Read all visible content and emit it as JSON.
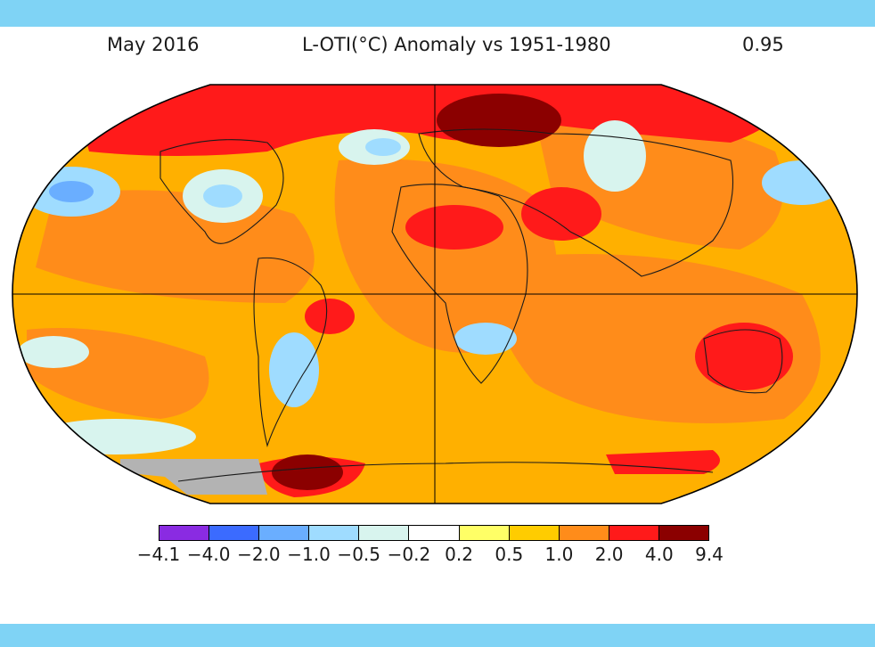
{
  "header": {
    "date": "May 2016",
    "title": "L-OTI(°C) Anomaly vs 1951-1980",
    "global_mean": "0.95"
  },
  "colorbar": {
    "colors": [
      "#8a2be2",
      "#3b6bff",
      "#6aaeff",
      "#9fdcff",
      "#d8f4ee",
      "#ffffff",
      "#ffff66",
      "#ffcc00",
      "#ff8c1a",
      "#ff1a1a",
      "#8b0000"
    ],
    "tick_labels": [
      "−4.1",
      "−4.0",
      "−2.0",
      "−1.0",
      "−0.5",
      "−0.2",
      "0.2",
      "0.5",
      "1.0",
      "2.0",
      "4.0",
      "9.4"
    ]
  },
  "map": {
    "projection": "Robinson",
    "missing_data_color": "#b3b3b3"
  }
}
